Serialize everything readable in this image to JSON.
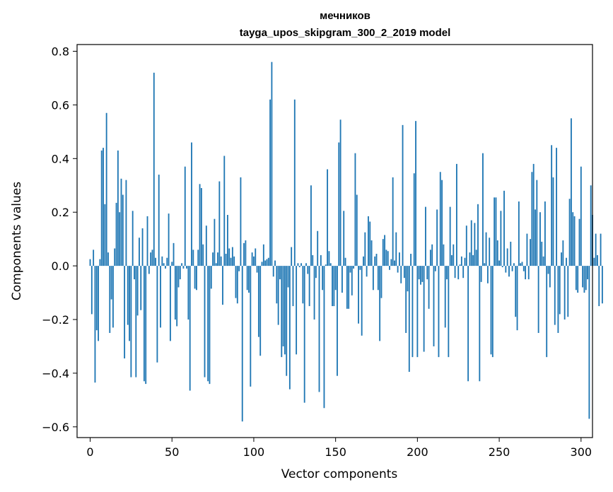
{
  "chart_data": {
    "type": "bar",
    "title": "мечников",
    "subtitle": "tayga_upos_skipgram_300_2_2019 model",
    "xlabel": "Vector components",
    "ylabel": "Components values",
    "xlim": [
      -8,
      307
    ],
    "ylim": [
      -0.64,
      0.825
    ],
    "xticks": [
      0,
      50,
      100,
      150,
      200,
      250,
      300
    ],
    "xtick_labels": [
      "0",
      "50",
      "100",
      "150",
      "200",
      "250",
      "300"
    ],
    "yticks": [
      -0.6,
      -0.4,
      -0.2,
      0.0,
      0.2,
      0.4,
      0.6,
      0.8
    ],
    "ytick_labels": [
      "−0.6",
      "−0.4",
      "−0.2",
      "0.0",
      "0.2",
      "0.4",
      "0.6",
      "0.8"
    ],
    "grid": false,
    "bar_color": "#1f77b4",
    "values": [
      0.025,
      -0.18,
      0.06,
      -0.435,
      -0.24,
      -0.28,
      0.025,
      0.43,
      0.44,
      0.23,
      0.57,
      0.05,
      -0.25,
      -0.125,
      -0.23,
      0.065,
      0.235,
      0.43,
      0.2,
      0.325,
      0.265,
      -0.345,
      0.32,
      -0.22,
      -0.28,
      -0.415,
      0.205,
      -0.05,
      -0.415,
      -0.185,
      0.105,
      -0.165,
      0.14,
      -0.43,
      -0.44,
      0.185,
      -0.03,
      0.05,
      0.06,
      0.72,
      0.03,
      -0.36,
      0.34,
      -0.23,
      0.035,
      0.01,
      -0.01,
      0.03,
      0.195,
      -0.28,
      0.015,
      0.085,
      -0.2,
      -0.225,
      -0.08,
      -0.05,
      0.01,
      -0.01,
      0.37,
      -0.01,
      -0.2,
      -0.465,
      0.46,
      0.06,
      -0.085,
      -0.09,
      0.06,
      0.305,
      0.29,
      0.08,
      -0.415,
      0.15,
      -0.43,
      -0.44,
      -0.085,
      0.05,
      0.175,
      0.01,
      0.05,
      0.315,
      0.035,
      -0.145,
      0.41,
      0.045,
      0.19,
      0.065,
      0.03,
      0.07,
      0.035,
      -0.12,
      -0.14,
      -0.02,
      0.33,
      -0.58,
      0.085,
      0.095,
      -0.09,
      -0.1,
      -0.45,
      0.05,
      0.035,
      0.065,
      -0.025,
      -0.265,
      -0.335,
      0.015,
      0.08,
      0.02,
      0.025,
      0.03,
      0.62,
      0.76,
      -0.04,
      0.02,
      -0.14,
      -0.22,
      -0.05,
      -0.34,
      -0.3,
      -0.33,
      -0.41,
      -0.08,
      -0.46,
      0.07,
      -0.15,
      0.62,
      -0.33,
      0.01,
      -0.005,
      0.01,
      -0.14,
      -0.51,
      0.01,
      -0.03,
      -0.15,
      0.3,
      0.04,
      -0.2,
      -0.045,
      0.13,
      -0.47,
      0.04,
      -0.09,
      -0.53,
      0.005,
      0.36,
      0.055,
      0.01,
      -0.15,
      -0.15,
      -0.09,
      -0.41,
      0.46,
      0.545,
      -0.1,
      0.205,
      0.03,
      -0.16,
      -0.16,
      -0.025,
      -0.11,
      -0.01,
      0.42,
      0.265,
      -0.215,
      -0.015,
      -0.26,
      0.035,
      0.125,
      -0.04,
      0.185,
      0.165,
      0.095,
      -0.09,
      0.035,
      0.045,
      -0.09,
      -0.28,
      -0.12,
      0.1,
      0.115,
      0.06,
      0.055,
      -0.015,
      0.025,
      0.33,
      0.02,
      0.125,
      -0.025,
      0.05,
      -0.065,
      0.525,
      -0.045,
      -0.25,
      -0.095,
      -0.395,
      0.045,
      -0.34,
      0.345,
      0.54,
      -0.34,
      -0.05,
      -0.07,
      -0.06,
      -0.32,
      0.22,
      -0.05,
      -0.16,
      0.06,
      0.08,
      -0.3,
      -0.02,
      0.21,
      -0.34,
      0.35,
      0.32,
      0.08,
      -0.23,
      -0.05,
      -0.34,
      0.22,
      0.04,
      0.08,
      -0.045,
      0.38,
      -0.05,
      0.005,
      0.035,
      -0.045,
      0.03,
      0.15,
      -0.43,
      0.05,
      0.17,
      0.04,
      0.16,
      0.06,
      0.23,
      -0.43,
      -0.06,
      0.42,
      0.01,
      0.125,
      -0.065,
      0.105,
      -0.33,
      -0.34,
      0.255,
      0.255,
      0.095,
      0.02,
      0.205,
      -0.005,
      0.28,
      -0.025,
      0.065,
      -0.04,
      0.09,
      -0.02,
      0.01,
      -0.19,
      -0.24,
      0.24,
      0.01,
      0.015,
      -0.02,
      -0.05,
      0.12,
      -0.05,
      0.1,
      0.35,
      0.38,
      0.21,
      0.32,
      -0.25,
      0.2,
      0.09,
      0.035,
      0.24,
      -0.34,
      -0.03,
      -0.08,
      0.45,
      0.33,
      -0.22,
      0.44,
      -0.25,
      -0.18,
      0.05,
      0.095,
      -0.2,
      0.03,
      -0.19,
      0.25,
      0.55,
      0.2,
      0.185,
      -0.09,
      -0.1,
      0.175,
      0.37,
      -0.08,
      -0.1,
      -0.09,
      -0.05,
      -0.57,
      0.3,
      0.19,
      0.03,
      0.12,
      0.04,
      -0.15,
      0.12,
      -0.14
    ],
    "note_counts": ""
  }
}
